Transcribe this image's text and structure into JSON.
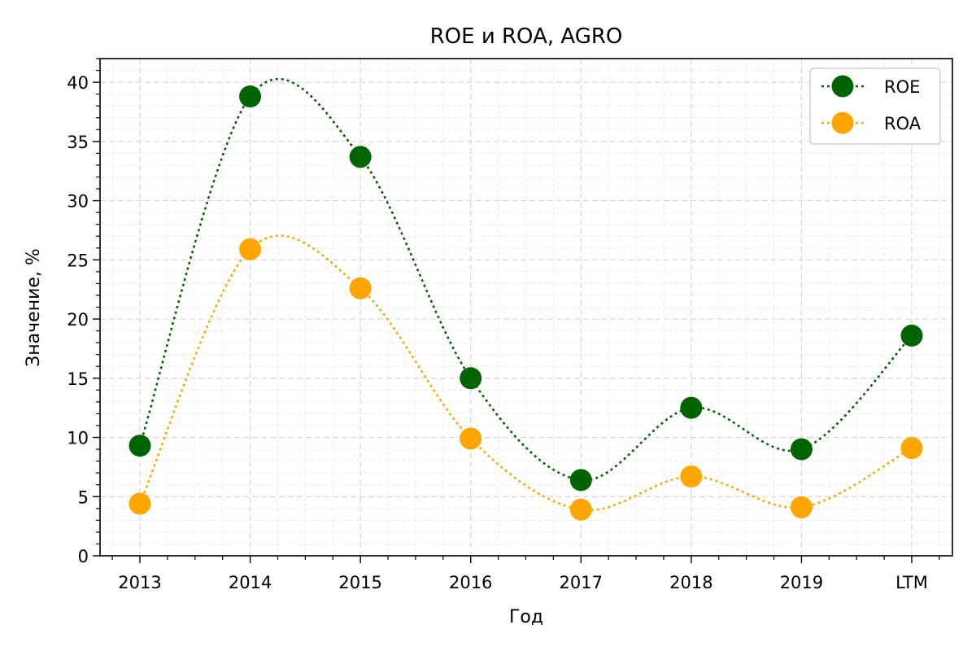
{
  "chart_data": {
    "type": "line",
    "title": "ROE и ROA, AGRO",
    "xlabel": "Год",
    "ylabel": "Значение, %",
    "categories": [
      "2013",
      "2014",
      "2015",
      "2016",
      "2017",
      "2018",
      "2019",
      "LTM"
    ],
    "ylim": [
      0,
      42
    ],
    "yticks": [
      0,
      5,
      10,
      15,
      20,
      25,
      30,
      35,
      40
    ],
    "grid": true,
    "legend_position": "top-right",
    "line_style": "dotted",
    "series": [
      {
        "name": "ROE",
        "color": "#006400",
        "values": [
          9.3,
          38.8,
          33.7,
          15.0,
          6.4,
          12.5,
          9.0,
          18.6
        ]
      },
      {
        "name": "ROA",
        "color": "#FFA500",
        "values": [
          4.4,
          25.9,
          22.6,
          9.9,
          3.9,
          6.7,
          4.1,
          9.1
        ]
      }
    ]
  }
}
